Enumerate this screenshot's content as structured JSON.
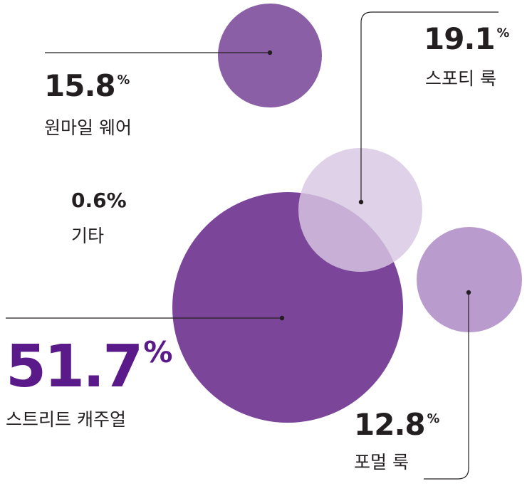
{
  "chart_data": {
    "type": "bubble",
    "unit": "%",
    "series": [
      {
        "label": "스트리트 캐주얼",
        "value": 51.7,
        "color": "#7b4599"
      },
      {
        "label": "스포티 룩",
        "value": 19.1,
        "color": "#d8c7e2"
      },
      {
        "label": "원마일 웨어",
        "value": 15.8,
        "color": "#8b5fa6"
      },
      {
        "label": "포멀 룩",
        "value": 12.8,
        "color": "#b99ccd"
      },
      {
        "label": "기타",
        "value": 0.6,
        "color": null
      }
    ]
  },
  "colors": {
    "text": "#231f20",
    "highlight": "#5b1a8a",
    "line": "#231f20"
  }
}
